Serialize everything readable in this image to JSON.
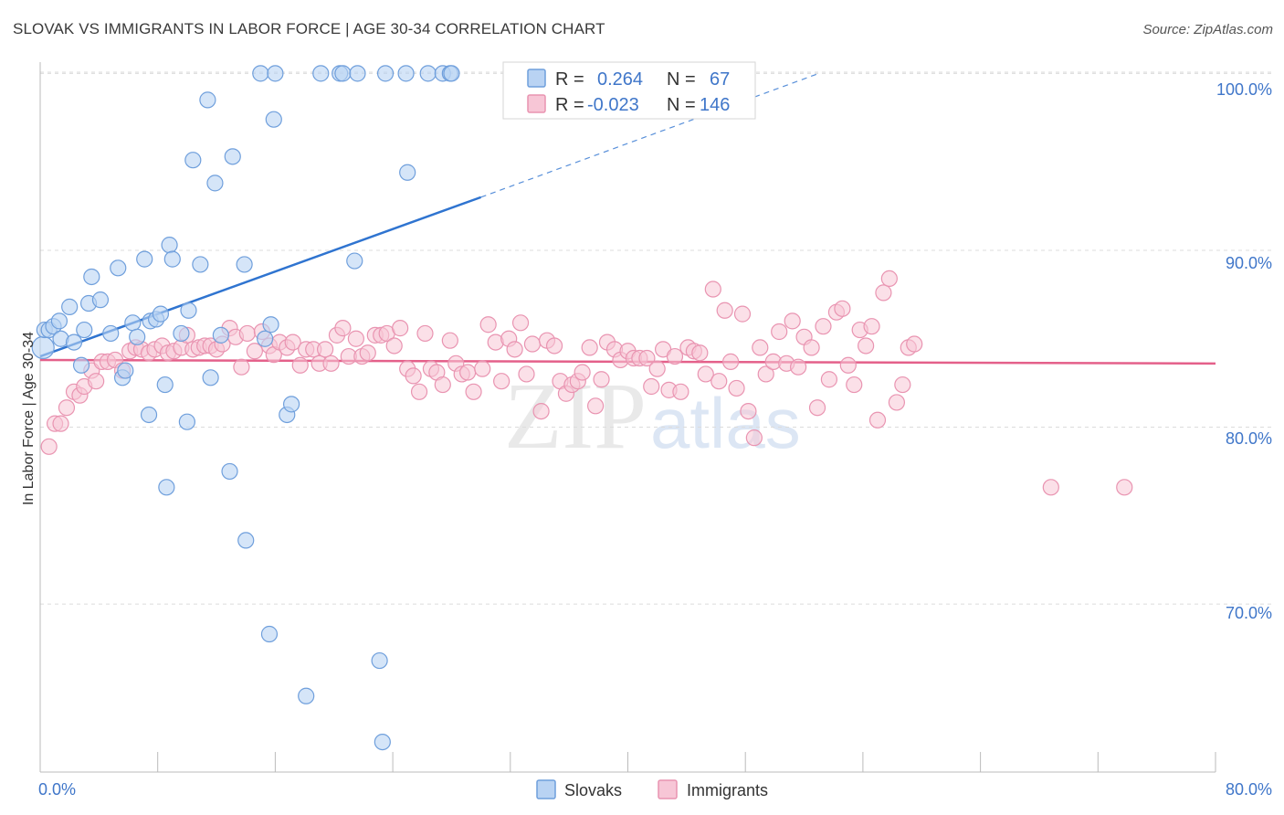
{
  "title": "SLOVAK VS IMMIGRANTS IN LABOR FORCE | AGE 30-34 CORRELATION CHART",
  "source": "Source: ZipAtlas.com",
  "watermark": {
    "zip": "ZIP",
    "atlas": "atlas"
  },
  "colors": {
    "slovak_fill": "#b9d3f3",
    "slovak_stroke": "#6f9fdc",
    "slovak_line": "#2f74d0",
    "immig_fill": "#f7c6d6",
    "immig_stroke": "#e994b1",
    "immig_line": "#e4608a",
    "tick_text": "#3f76c9",
    "grid": "#dcdcdc"
  },
  "legend": {
    "r_label": "R =",
    "n_label": "N =",
    "rows": [
      {
        "r": "0.264",
        "n": "67"
      },
      {
        "r": "-0.023",
        "n": "146"
      }
    ]
  },
  "chart_data": {
    "type": "scatter",
    "title": "SLOVAK VS IMMIGRANTS IN LABOR FORCE | AGE 30-34 CORRELATION CHART",
    "xlabel": "",
    "ylabel": "In Labor Force | Age 30-34",
    "xlim": [
      0,
      80
    ],
    "ylim": [
      60.5,
      101
    ],
    "x_tick_labels": [
      "0.0%",
      "80.0%"
    ],
    "y_ticks": [
      70,
      80,
      90,
      100
    ],
    "y_tick_labels": [
      "70.0%",
      "80.0%",
      "90.0%",
      "100.0%"
    ],
    "grid": true,
    "legend_position": "top-center",
    "series": [
      {
        "name": "Slovaks",
        "r": 0.264,
        "n": 67,
        "trend": {
          "x0": 0,
          "y0": 84.0,
          "x1": 30,
          "y1": 93.0,
          "dash_to_x": 53,
          "dash_to_y": 100.0
        },
        "points": [
          [
            0.2,
            84.5
          ],
          [
            0.3,
            85.5
          ],
          [
            0.6,
            85.5
          ],
          [
            0.9,
            85.7
          ],
          [
            1.3,
            86.0
          ],
          [
            1.4,
            85.0
          ],
          [
            2.0,
            86.8
          ],
          [
            2.3,
            84.8
          ],
          [
            2.8,
            83.5
          ],
          [
            3.0,
            85.5
          ],
          [
            3.3,
            87.0
          ],
          [
            3.5,
            88.5
          ],
          [
            4.1,
            87.2
          ],
          [
            4.8,
            85.3
          ],
          [
            5.3,
            89.0
          ],
          [
            5.6,
            82.8
          ],
          [
            5.8,
            83.2
          ],
          [
            6.3,
            85.9
          ],
          [
            6.6,
            85.1
          ],
          [
            7.1,
            89.5
          ],
          [
            7.4,
            80.7
          ],
          [
            7.5,
            86.0
          ],
          [
            7.9,
            86.1
          ],
          [
            8.2,
            86.4
          ],
          [
            8.5,
            82.4
          ],
          [
            8.6,
            76.6
          ],
          [
            8.8,
            90.3
          ],
          [
            9.0,
            89.5
          ],
          [
            9.6,
            85.3
          ],
          [
            10.0,
            80.3
          ],
          [
            10.1,
            86.6
          ],
          [
            10.4,
            95.1
          ],
          [
            10.9,
            89.2
          ],
          [
            11.4,
            98.5
          ],
          [
            11.6,
            82.8
          ],
          [
            11.9,
            93.8
          ],
          [
            12.3,
            85.2
          ],
          [
            12.9,
            77.5
          ],
          [
            13.1,
            95.3
          ],
          [
            13.9,
            89.2
          ],
          [
            14.0,
            73.6
          ],
          [
            15.0,
            100.0
          ],
          [
            15.3,
            85.0
          ],
          [
            15.6,
            68.3
          ],
          [
            15.7,
            85.8
          ],
          [
            15.9,
            97.4
          ],
          [
            16.0,
            100.0
          ],
          [
            16.8,
            80.7
          ],
          [
            17.1,
            81.3
          ],
          [
            18.1,
            64.8
          ],
          [
            19.1,
            100.0
          ],
          [
            20.4,
            100.0
          ],
          [
            20.6,
            100.0
          ],
          [
            21.4,
            89.4
          ],
          [
            21.6,
            100.0
          ],
          [
            23.1,
            66.8
          ],
          [
            23.3,
            62.2
          ],
          [
            23.5,
            100.0
          ],
          [
            24.9,
            100.0
          ],
          [
            25.0,
            94.4
          ],
          [
            26.4,
            100.0
          ],
          [
            27.4,
            100.0
          ],
          [
            27.9,
            100.0
          ],
          [
            28.0,
            100.0
          ]
        ]
      },
      {
        "name": "Immigrants",
        "r": -0.023,
        "n": 146,
        "trend": {
          "x0": 0,
          "y0": 83.8,
          "x1": 80,
          "y1": 83.6
        },
        "points": [
          [
            0.6,
            78.9
          ],
          [
            1.0,
            80.2
          ],
          [
            1.4,
            80.2
          ],
          [
            1.8,
            81.1
          ],
          [
            2.3,
            82.0
          ],
          [
            2.7,
            81.8
          ],
          [
            3.0,
            82.3
          ],
          [
            3.5,
            83.2
          ],
          [
            3.8,
            82.6
          ],
          [
            4.2,
            83.7
          ],
          [
            4.6,
            83.7
          ],
          [
            5.1,
            83.8
          ],
          [
            5.6,
            83.2
          ],
          [
            6.1,
            84.3
          ],
          [
            6.5,
            84.5
          ],
          [
            6.9,
            84.4
          ],
          [
            7.4,
            84.2
          ],
          [
            7.8,
            84.4
          ],
          [
            8.3,
            84.6
          ],
          [
            8.7,
            84.2
          ],
          [
            9.1,
            84.3
          ],
          [
            9.6,
            84.5
          ],
          [
            10.0,
            85.2
          ],
          [
            10.4,
            84.4
          ],
          [
            10.8,
            84.5
          ],
          [
            11.2,
            84.6
          ],
          [
            11.6,
            84.6
          ],
          [
            12.0,
            84.4
          ],
          [
            12.4,
            84.7
          ],
          [
            12.9,
            85.6
          ],
          [
            13.3,
            85.1
          ],
          [
            13.7,
            83.4
          ],
          [
            14.1,
            85.3
          ],
          [
            14.6,
            84.3
          ],
          [
            15.1,
            85.4
          ],
          [
            15.6,
            84.6
          ],
          [
            15.9,
            84.1
          ],
          [
            16.3,
            84.8
          ],
          [
            16.8,
            84.5
          ],
          [
            17.2,
            84.8
          ],
          [
            17.7,
            83.5
          ],
          [
            18.1,
            84.4
          ],
          [
            18.6,
            84.4
          ],
          [
            19.0,
            83.6
          ],
          [
            19.4,
            84.4
          ],
          [
            19.8,
            83.6
          ],
          [
            20.2,
            85.2
          ],
          [
            20.6,
            85.6
          ],
          [
            21.0,
            84.0
          ],
          [
            21.5,
            85.0
          ],
          [
            21.9,
            84.0
          ],
          [
            22.3,
            84.2
          ],
          [
            22.8,
            85.2
          ],
          [
            23.2,
            85.2
          ],
          [
            23.6,
            85.3
          ],
          [
            24.1,
            84.6
          ],
          [
            24.5,
            85.6
          ],
          [
            25.0,
            83.3
          ],
          [
            25.4,
            82.9
          ],
          [
            25.8,
            82.0
          ],
          [
            26.2,
            85.3
          ],
          [
            26.6,
            83.3
          ],
          [
            27.0,
            83.1
          ],
          [
            27.4,
            82.4
          ],
          [
            27.9,
            84.9
          ],
          [
            28.3,
            83.6
          ],
          [
            28.7,
            83.0
          ],
          [
            29.1,
            83.1
          ],
          [
            29.5,
            82.0
          ],
          [
            30.1,
            83.3
          ],
          [
            30.5,
            85.8
          ],
          [
            31.0,
            84.8
          ],
          [
            31.4,
            82.6
          ],
          [
            31.9,
            85.0
          ],
          [
            32.3,
            84.4
          ],
          [
            32.7,
            85.9
          ],
          [
            33.1,
            83.0
          ],
          [
            33.5,
            84.7
          ],
          [
            34.1,
            80.9
          ],
          [
            34.5,
            84.9
          ],
          [
            35.0,
            84.6
          ],
          [
            35.4,
            82.6
          ],
          [
            35.8,
            81.9
          ],
          [
            36.2,
            82.4
          ],
          [
            36.6,
            82.6
          ],
          [
            36.9,
            83.1
          ],
          [
            37.4,
            84.5
          ],
          [
            37.8,
            81.2
          ],
          [
            38.2,
            82.7
          ],
          [
            38.6,
            84.8
          ],
          [
            39.1,
            84.4
          ],
          [
            39.5,
            83.8
          ],
          [
            40.0,
            84.3
          ],
          [
            40.4,
            83.9
          ],
          [
            40.8,
            83.9
          ],
          [
            41.3,
            83.9
          ],
          [
            41.6,
            82.3
          ],
          [
            42.0,
            83.3
          ],
          [
            42.4,
            84.4
          ],
          [
            42.8,
            82.1
          ],
          [
            43.2,
            84.0
          ],
          [
            43.6,
            82.0
          ],
          [
            44.1,
            84.5
          ],
          [
            44.5,
            84.3
          ],
          [
            44.9,
            84.2
          ],
          [
            45.3,
            83.0
          ],
          [
            45.8,
            87.8
          ],
          [
            46.2,
            82.6
          ],
          [
            46.6,
            86.6
          ],
          [
            47.0,
            83.7
          ],
          [
            47.4,
            82.2
          ],
          [
            47.8,
            86.4
          ],
          [
            48.2,
            80.9
          ],
          [
            48.6,
            79.4
          ],
          [
            49.0,
            84.5
          ],
          [
            49.4,
            83.0
          ],
          [
            49.9,
            83.7
          ],
          [
            50.3,
            85.4
          ],
          [
            50.8,
            83.6
          ],
          [
            51.2,
            86.0
          ],
          [
            51.6,
            83.4
          ],
          [
            52.0,
            85.1
          ],
          [
            52.5,
            84.5
          ],
          [
            52.9,
            81.1
          ],
          [
            53.3,
            85.7
          ],
          [
            53.7,
            82.7
          ],
          [
            54.2,
            86.5
          ],
          [
            54.6,
            86.7
          ],
          [
            55.0,
            83.5
          ],
          [
            55.4,
            82.4
          ],
          [
            55.8,
            85.5
          ],
          [
            56.2,
            84.6
          ],
          [
            56.6,
            85.7
          ],
          [
            57.0,
            80.4
          ],
          [
            57.4,
            87.6
          ],
          [
            57.8,
            88.4
          ],
          [
            58.3,
            81.4
          ],
          [
            58.7,
            82.4
          ],
          [
            59.1,
            84.5
          ],
          [
            59.5,
            84.7
          ],
          [
            68.8,
            76.6
          ],
          [
            73.8,
            76.6
          ]
        ]
      }
    ]
  },
  "bottom_legend": [
    {
      "label": "Slovaks"
    },
    {
      "label": "Immigrants"
    }
  ]
}
